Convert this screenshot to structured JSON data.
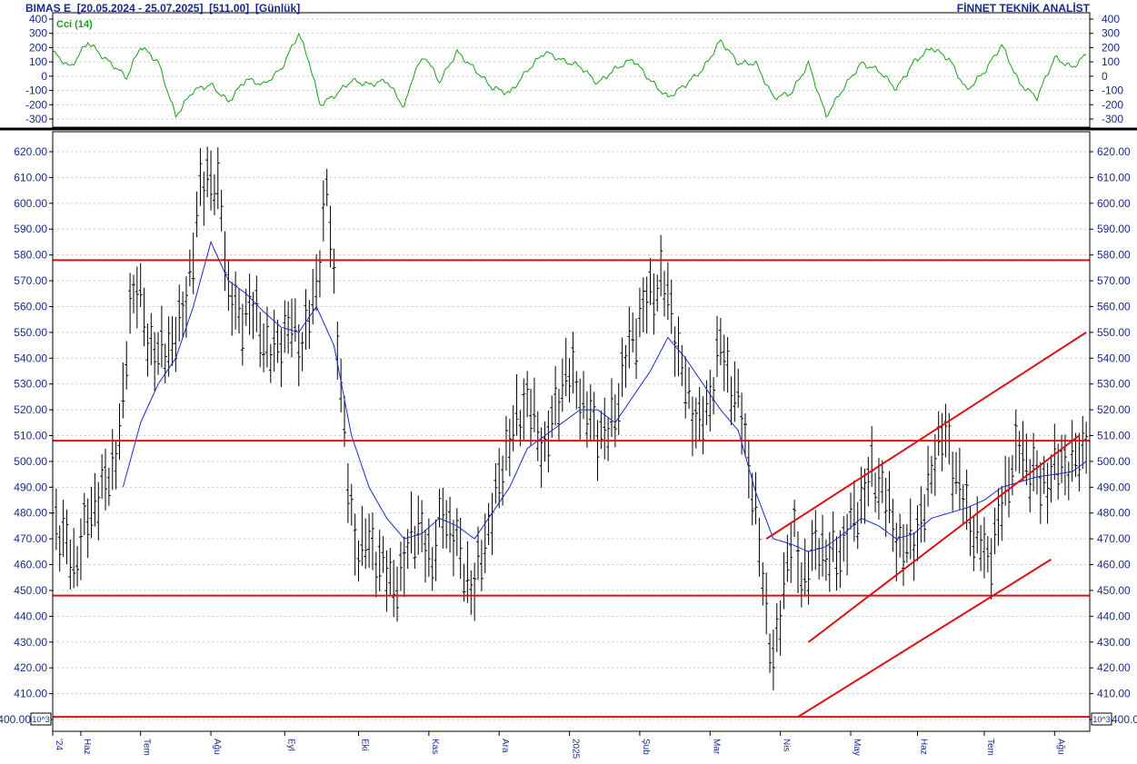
{
  "header": {
    "symbol": "BIMAS E",
    "range": "[20.05.2024 - 25.07.2025]",
    "last": "[511.00]",
    "period": "[Günlük]",
    "vendor": "FİNNET TEKNİK ANALİST"
  },
  "colors": {
    "text": "#1a2a8a",
    "bars": "#000000",
    "ma": "#1a2ad0",
    "cci": "#18a018",
    "trend": "#dd1111",
    "grid": "#c8c8c8"
  },
  "chart_data": [
    {
      "type": "line",
      "name": "cci_panel",
      "label": "Cci (14)",
      "ylim": [
        -350,
        400
      ],
      "yticks": [
        -300,
        -200,
        -100,
        0,
        100,
        200,
        300,
        400
      ],
      "ytick_labels": [
        "-300",
        "-200",
        "-100",
        "0",
        "100",
        "200",
        "300",
        "400"
      ],
      "grid": true,
      "series": [
        {
          "name": "Cci (14)",
          "x": [
            0,
            5,
            10,
            15,
            18,
            21,
            25,
            30,
            35,
            40,
            45,
            50,
            55,
            60,
            65,
            70,
            73,
            76,
            80,
            85,
            90,
            95,
            100,
            103,
            106,
            110,
            115,
            120,
            125,
            130,
            135,
            140,
            145,
            150,
            155,
            160,
            165,
            170,
            175,
            180,
            185,
            190,
            195,
            200,
            205,
            210,
            215,
            220,
            225,
            230,
            235,
            240,
            245,
            250,
            255,
            260,
            265,
            270,
            275,
            280,
            285,
            290,
            294
          ],
          "values": [
            170,
            60,
            240,
            120,
            60,
            -10,
            210,
            100,
            -280,
            -100,
            -60,
            -180,
            -20,
            -60,
            50,
            300,
            100,
            -200,
            -140,
            -30,
            -60,
            -30,
            -220,
            40,
            140,
            -40,
            170,
            50,
            -80,
            -120,
            40,
            170,
            110,
            70,
            -50,
            50,
            120,
            -30,
            -150,
            -60,
            50,
            250,
            90,
            90,
            -150,
            -120,
            90,
            -280,
            -80,
            90,
            40,
            -90,
            100,
            200,
            120,
            -100,
            30,
            220,
            -50,
            -150,
            130,
            60,
            150
          ]
        }
      ]
    },
    {
      "type": "line",
      "name": "price_panel",
      "ylim": [
        400,
        625
      ],
      "yticks": [
        400,
        410,
        420,
        430,
        440,
        450,
        460,
        470,
        480,
        490,
        500,
        510,
        520,
        530,
        540,
        550,
        560,
        570,
        580,
        590,
        600,
        610,
        620
      ],
      "ytick_labels": [
        "400.00",
        "410.00",
        "420.00",
        "430.00",
        "440.00",
        "450.00",
        "460.00",
        "470.00",
        "480.00",
        "490.00",
        "500.00",
        "510.00",
        "520.00",
        "530.00",
        "540.00",
        "550.00",
        "560.00",
        "570.00",
        "580.00",
        "590.00",
        "600.00",
        "610.00",
        "620.00"
      ],
      "scale_badge": "10^3",
      "grid": true,
      "x_tick_labels": [
        "'24",
        "Haz",
        "Tem",
        "Ağu",
        "Eyl",
        "Eki",
        "Kas",
        "Ara",
        "2025",
        "Şub",
        "Mar",
        "Nis",
        "May",
        "Haz",
        "Tem",
        "Ağu"
      ],
      "x_tick_positions": [
        0,
        8,
        25,
        45,
        66,
        87,
        107,
        127,
        147,
        167,
        187,
        207,
        227,
        246,
        265,
        285
      ],
      "series": [
        {
          "name": "price",
          "x": [
            0,
            3,
            6,
            9,
            12,
            15,
            18,
            20,
            22,
            24,
            27,
            30,
            33,
            36,
            38,
            40,
            42,
            44,
            46,
            48,
            50,
            53,
            56,
            59,
            62,
            65,
            68,
            71,
            74,
            76,
            78,
            80,
            82,
            84,
            86,
            88,
            90,
            93,
            96,
            99,
            102,
            105,
            108,
            111,
            114,
            117,
            120,
            123,
            126,
            129,
            132,
            135,
            138,
            140,
            143,
            146,
            149,
            152,
            155,
            158,
            161,
            164,
            167,
            170,
            173,
            176,
            178,
            180,
            182,
            184,
            187,
            190,
            193,
            196,
            199,
            202,
            205,
            207,
            209,
            211,
            213,
            215,
            218,
            221,
            224,
            227,
            230,
            233,
            236,
            239,
            242,
            245,
            248,
            251,
            254,
            257,
            260,
            263,
            266,
            269,
            272,
            275,
            278,
            281,
            284,
            287,
            290,
            293,
            294
          ],
          "values": [
            480,
            470,
            460,
            472,
            485,
            490,
            503,
            520,
            562,
            568,
            548,
            540,
            545,
            550,
            565,
            580,
            605,
            612,
            605,
            600,
            565,
            555,
            560,
            552,
            540,
            548,
            552,
            545,
            560,
            580,
            605,
            570,
            530,
            490,
            470,
            465,
            470,
            460,
            455,
            452,
            475,
            470,
            462,
            480,
            472,
            458,
            450,
            470,
            485,
            505,
            515,
            525,
            510,
            505,
            520,
            535,
            530,
            518,
            512,
            510,
            525,
            545,
            555,
            565,
            570,
            560,
            540,
            530,
            520,
            512,
            525,
            545,
            530,
            518,
            490,
            455,
            420,
            440,
            465,
            470,
            455,
            460,
            468,
            462,
            465,
            475,
            485,
            495,
            490,
            475,
            465,
            470,
            480,
            505,
            510,
            495,
            480,
            470,
            462,
            475,
            495,
            505,
            498,
            490,
            495,
            500,
            498,
            505,
            511
          ]
        },
        {
          "name": "moving average",
          "x": [
            20,
            25,
            30,
            35,
            40,
            45,
            50,
            55,
            60,
            65,
            70,
            75,
            80,
            85,
            90,
            95,
            100,
            105,
            110,
            115,
            120,
            125,
            130,
            135,
            140,
            145,
            150,
            155,
            160,
            165,
            170,
            175,
            180,
            185,
            190,
            195,
            200,
            205,
            210,
            215,
            220,
            225,
            230,
            235,
            240,
            245,
            250,
            255,
            260,
            265,
            270,
            275,
            280,
            285,
            290,
            294
          ],
          "values": [
            490,
            515,
            530,
            540,
            560,
            585,
            570,
            565,
            558,
            552,
            550,
            560,
            545,
            510,
            490,
            478,
            470,
            472,
            478,
            475,
            470,
            480,
            490,
            505,
            510,
            515,
            520,
            520,
            515,
            525,
            535,
            548,
            540,
            530,
            520,
            512,
            488,
            470,
            468,
            465,
            467,
            472,
            478,
            475,
            470,
            472,
            478,
            480,
            482,
            485,
            490,
            492,
            494,
            495,
            496,
            500
          ]
        }
      ],
      "horizontal_levels": [
        578,
        508,
        448,
        401
      ],
      "trend_lines": [
        {
          "x1": 203,
          "y1": 470,
          "x2": 294,
          "y2": 550
        },
        {
          "x1": 215,
          "y1": 430,
          "x2": 292,
          "y2": 510
        },
        {
          "x1": 212,
          "y1": 401,
          "x2": 284,
          "y2": 462
        }
      ]
    }
  ]
}
